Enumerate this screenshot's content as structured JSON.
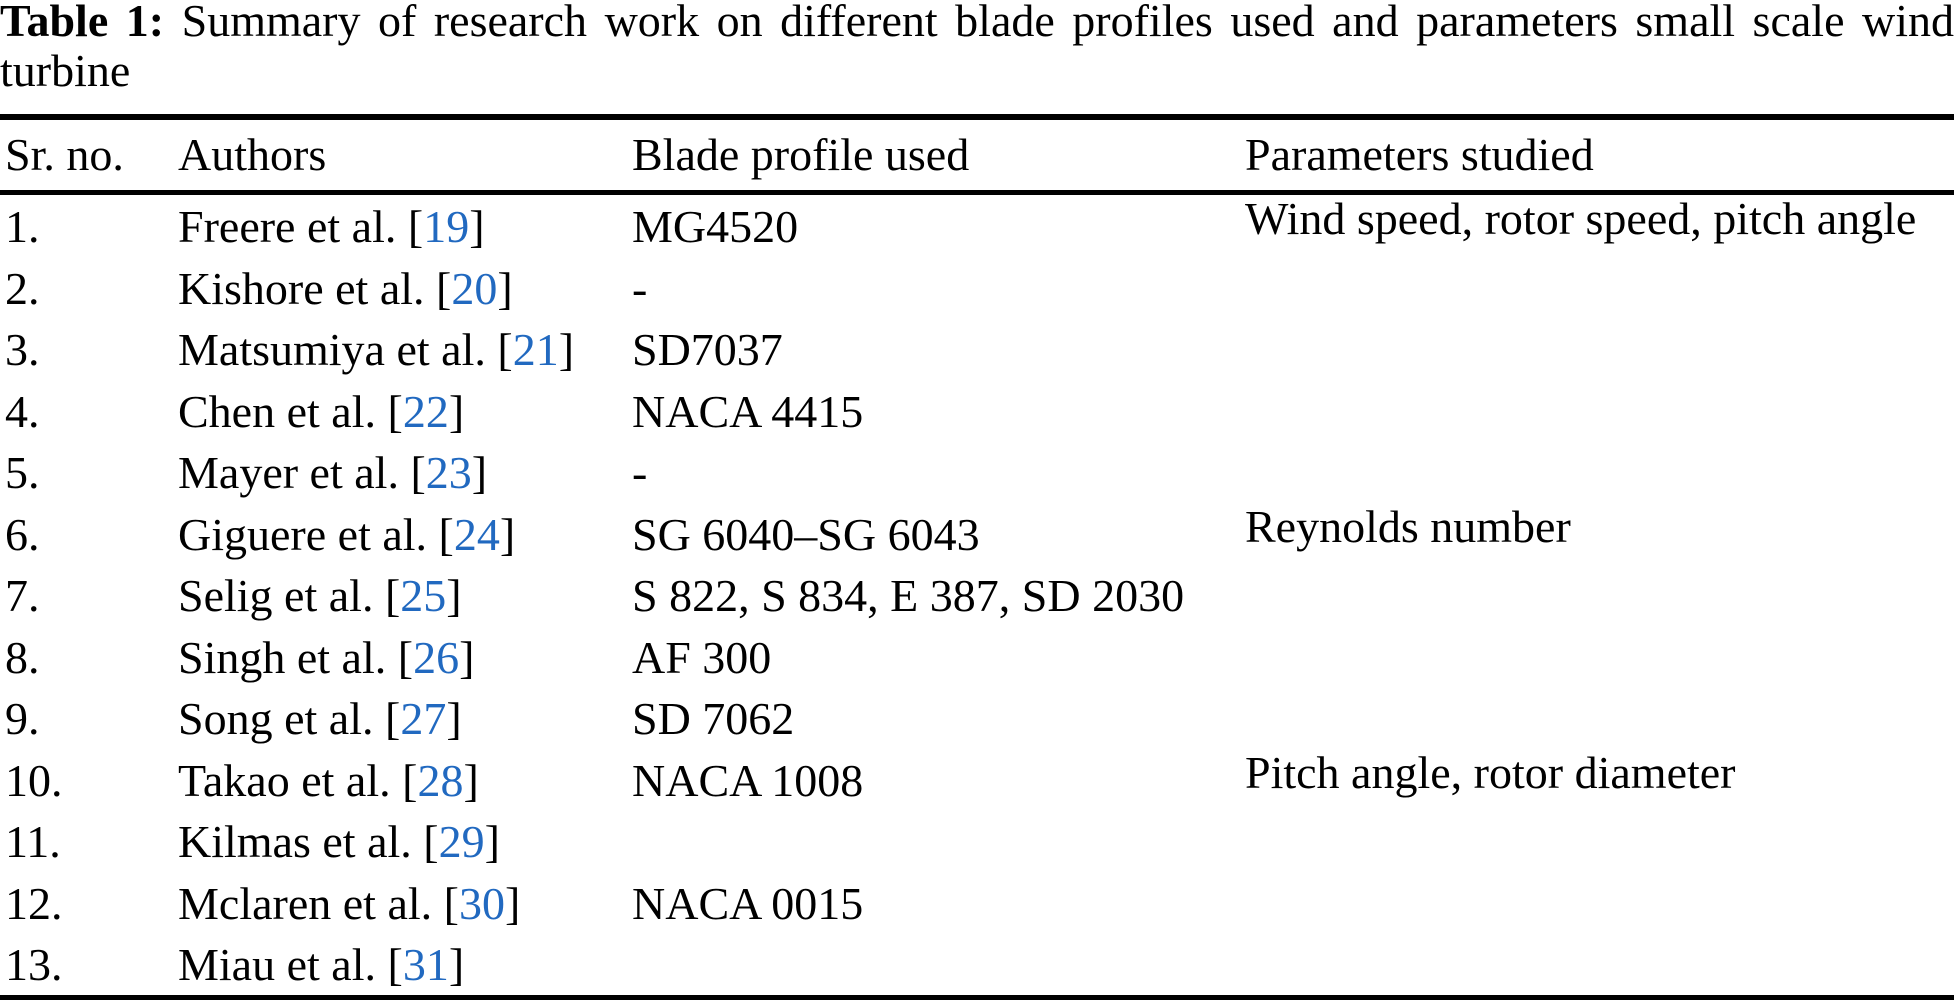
{
  "page": {
    "background_color": "#ffffff",
    "text_color": "#000000",
    "citation_link_color": "#2169c0"
  },
  "caption": {
    "label": "Table 1:",
    "line1_rest": "Summary of research work on different blade profiles used and parameters small scale wind",
    "line2": "turbine"
  },
  "table": {
    "bracket_open": "[",
    "bracket_close": "]",
    "columns": {
      "sr": "Sr. no.",
      "authors": "Authors",
      "blade": "Blade profile used",
      "params": "Parameters studied"
    },
    "rows": [
      {
        "sr": "1.",
        "author": "Freere et al.",
        "ref": "19",
        "blade": "MG4520",
        "params": "Wind speed, rotor speed, pitch angle"
      },
      {
        "sr": "2.",
        "author": "Kishore et al.",
        "ref": "20",
        "blade": "-",
        "params": ""
      },
      {
        "sr": "3.",
        "author": "Matsumiya et al.",
        "ref": "21",
        "blade": "SD7037",
        "params": ""
      },
      {
        "sr": "4.",
        "author": "Chen et al.",
        "ref": "22",
        "blade": "NACA 4415",
        "params": ""
      },
      {
        "sr": "5.",
        "author": "Mayer et al.",
        "ref": "23",
        "blade": "-",
        "params": ""
      },
      {
        "sr": "6.",
        "author": "Giguere et al.",
        "ref": "24",
        "blade": "SG 6040–SG 6043",
        "params": "Reynolds number"
      },
      {
        "sr": "7.",
        "author": "Selig et al.",
        "ref": "25",
        "blade": "S 822, S 834, E 387, SD 2030",
        "params": ""
      },
      {
        "sr": "8.",
        "author": "Singh et al.",
        "ref": "26",
        "blade": "AF 300",
        "params": ""
      },
      {
        "sr": "9.",
        "author": "Song et al.",
        "ref": "27",
        "blade": "SD 7062",
        "params": ""
      },
      {
        "sr": "10.",
        "author": "Takao et al.",
        "ref": "28",
        "blade": "NACA 1008",
        "params": "Pitch angle, rotor diameter"
      },
      {
        "sr": "11.",
        "author": "Kilmas et al.",
        "ref": "29",
        "blade": "",
        "params": ""
      },
      {
        "sr": "12.",
        "author": "Mclaren et al.",
        "ref": "30",
        "blade": "NACA 0015",
        "params": ""
      },
      {
        "sr": "13.",
        "author": "Miau et al.",
        "ref": "31",
        "blade": "",
        "params": ""
      }
    ]
  }
}
